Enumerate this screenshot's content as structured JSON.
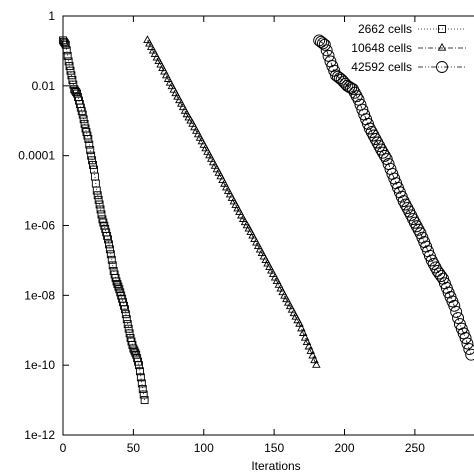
{
  "chart_data": {
    "type": "scatter",
    "title": "",
    "xlabel": "Iterations",
    "ylabel": "",
    "xlim": [
      0,
      292
    ],
    "ylim": [
      1e-12,
      1
    ],
    "yscale": "log",
    "xticks": [
      {
        "value": 0,
        "label": "0"
      },
      {
        "value": 50,
        "label": "50"
      },
      {
        "value": 100,
        "label": "100"
      },
      {
        "value": 150,
        "label": "150"
      },
      {
        "value": 200,
        "label": "200"
      },
      {
        "value": 250,
        "label": "250"
      }
    ],
    "yticks": [
      {
        "value": 1,
        "label": "1"
      },
      {
        "value": 0.01,
        "label": "0.01"
      },
      {
        "value": 0.0001,
        "label": "0.0001"
      },
      {
        "value": 1e-06,
        "label": "1e-06"
      },
      {
        "value": 1e-08,
        "label": "1e-08"
      },
      {
        "value": 1e-10,
        "label": "1e-10"
      },
      {
        "value": 1e-12,
        "label": "1e-12"
      }
    ],
    "grid": false,
    "legend_position": "top-right",
    "series": [
      {
        "name": "2662 cells",
        "marker": "square",
        "line": "dotted",
        "x": [
          0,
          2,
          4,
          6,
          8,
          10,
          12,
          14,
          16,
          18,
          20,
          22,
          24,
          26,
          28,
          30,
          32,
          34,
          36,
          38,
          40,
          42,
          44,
          46,
          48,
          50,
          52,
          54,
          56,
          58
        ],
        "y": [
          0.2,
          0.15,
          0.05,
          0.02,
          0.008,
          0.006,
          0.003,
          0.0015,
          0.0006,
          0.0003,
          0.0001,
          4e-05,
          1e-05,
          4e-06,
          1.5e-06,
          8e-07,
          4e-07,
          1.5e-07,
          5e-08,
          2.5e-08,
          1.5e-08,
          8e-09,
          4e-09,
          1.5e-09,
          6e-10,
          3e-10,
          2e-10,
          1e-10,
          3e-11,
          1e-11
        ]
      },
      {
        "name": "10648 cells",
        "marker": "triangle",
        "line": "dash-dot",
        "x": [
          60,
          64,
          68,
          72,
          76,
          80,
          84,
          88,
          92,
          96,
          100,
          104,
          108,
          112,
          116,
          120,
          124,
          128,
          132,
          136,
          140,
          144,
          148,
          152,
          156,
          160,
          164,
          168,
          172,
          176,
          180
        ],
        "y": [
          0.2,
          0.1,
          0.05,
          0.025,
          0.012,
          0.006,
          0.003,
          0.0015,
          0.0008,
          0.0004,
          0.0002,
          0.0001,
          5e-05,
          2.5e-05,
          1.2e-05,
          6e-06,
          3e-06,
          1.5e-06,
          8e-07,
          4e-07,
          2e-07,
          1e-07,
          5e-08,
          2.5e-08,
          1.2e-08,
          6e-09,
          3e-09,
          1.5e-09,
          6e-10,
          2.5e-10,
          1e-10
        ]
      },
      {
        "name": "42592 cells",
        "marker": "circle",
        "line": "dash-dot-dot",
        "x": [
          182,
          186,
          190,
          194,
          198,
          202,
          206,
          210,
          214,
          218,
          222,
          226,
          230,
          234,
          238,
          242,
          246,
          250,
          254,
          258,
          262,
          266,
          270,
          274,
          278,
          282,
          286,
          290
        ],
        "y": [
          0.2,
          0.15,
          0.05,
          0.02,
          0.015,
          0.01,
          0.008,
          0.004,
          0.0015,
          0.0006,
          0.0003,
          0.00015,
          8e-05,
          3e-05,
          1.2e-05,
          5e-06,
          2.5e-06,
          1.2e-06,
          6e-07,
          2.5e-07,
          1e-07,
          5e-08,
          3e-08,
          1.2e-08,
          5e-09,
          1.5e-09,
          6e-10,
          2e-10
        ]
      }
    ]
  }
}
